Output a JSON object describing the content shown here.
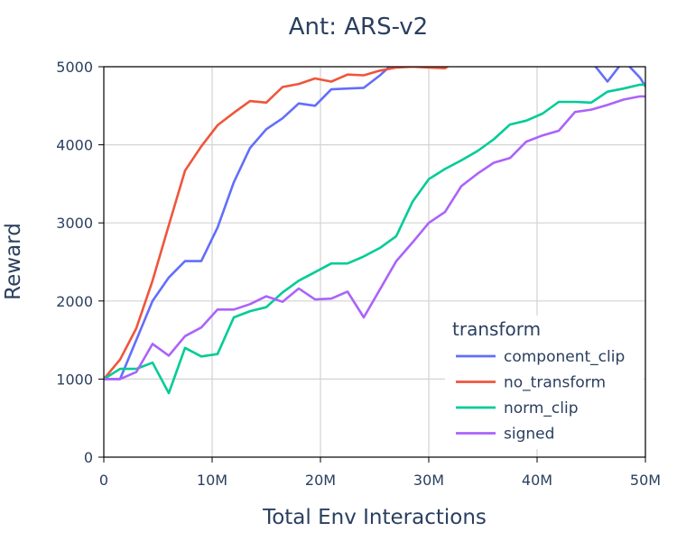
{
  "chart_data": {
    "type": "line",
    "title": "Ant: ARS-v2",
    "xlabel": "Total Env Interactions",
    "ylabel": "Reward",
    "xlim": [
      0,
      50000000
    ],
    "ylim": [
      0,
      5000
    ],
    "x_ticks": [
      0,
      10000000,
      20000000,
      30000000,
      40000000,
      50000000
    ],
    "x_tick_labels": [
      "0",
      "10M",
      "20M",
      "30M",
      "40M",
      "50M"
    ],
    "y_ticks": [
      0,
      1000,
      2000,
      3000,
      4000,
      5000
    ],
    "y_tick_labels": [
      "0",
      "1000",
      "2000",
      "3000",
      "4000",
      "5000"
    ],
    "grid": true,
    "legend": {
      "title": "transform",
      "placement": "bottom-right"
    },
    "series": [
      {
        "name": "component_clip",
        "color": "#636efa",
        "x": [
          0,
          1500000,
          3000000,
          4500000,
          6000000,
          7500000,
          9000000,
          10500000,
          12000000,
          13500000,
          15000000,
          16500000,
          18000000,
          19500000,
          21000000,
          22500000,
          24000000,
          25500000,
          27000000,
          28500000,
          30000000,
          31500000,
          33000000,
          34500000,
          36000000,
          37500000,
          39000000,
          40500000,
          42000000,
          43500000,
          45000000,
          46500000,
          48000000,
          49500000,
          50000000
        ],
        "y": [
          1000,
          1000,
          1500,
          2000,
          2300,
          2510,
          2510,
          2940,
          3520,
          3960,
          4200,
          4340,
          4530,
          4500,
          4710,
          4720,
          4730,
          4890,
          5080,
          5100,
          5130,
          5150,
          5120,
          5140,
          5110,
          5100,
          5020,
          5100,
          5150,
          5120,
          5070,
          4810,
          5080,
          4860,
          4750
        ]
      },
      {
        "name": "no_transform",
        "color": "#ef553b",
        "x": [
          0,
          1500000,
          3000000,
          4500000,
          6000000,
          7500000,
          9000000,
          10500000,
          12000000,
          13500000,
          15000000,
          16500000,
          18000000,
          19500000,
          21000000,
          22500000,
          24000000,
          25500000,
          27000000,
          28500000,
          30000000,
          31500000,
          33000000,
          34500000
        ],
        "y": [
          1000,
          1250,
          1650,
          2260,
          2970,
          3670,
          3980,
          4250,
          4410,
          4560,
          4540,
          4740,
          4780,
          4850,
          4810,
          4900,
          4890,
          4950,
          4990,
          5000,
          4990,
          4980,
          5120,
          5200
        ]
      },
      {
        "name": "norm_clip",
        "color": "#00cc96",
        "x": [
          0,
          1500000,
          3000000,
          4500000,
          6000000,
          7500000,
          9000000,
          10500000,
          12000000,
          13500000,
          15000000,
          16500000,
          18000000,
          19500000,
          21000000,
          22500000,
          24000000,
          25500000,
          27000000,
          28500000,
          30000000,
          31500000,
          33000000,
          34500000,
          36000000,
          37500000,
          39000000,
          40500000,
          42000000,
          43500000,
          45000000,
          46500000,
          48000000,
          49500000,
          50000000
        ],
        "y": [
          1000,
          1130,
          1130,
          1210,
          820,
          1400,
          1290,
          1320,
          1790,
          1870,
          1920,
          2110,
          2260,
          2370,
          2480,
          2480,
          2570,
          2680,
          2830,
          3270,
          3560,
          3690,
          3800,
          3920,
          4070,
          4260,
          4310,
          4400,
          4550,
          4550,
          4540,
          4680,
          4720,
          4770,
          4770
        ]
      },
      {
        "name": "signed",
        "color": "#ab63fa",
        "x": [
          0,
          1500000,
          3000000,
          4500000,
          6000000,
          7500000,
          9000000,
          10500000,
          12000000,
          13500000,
          15000000,
          16500000,
          18000000,
          19500000,
          21000000,
          22500000,
          24000000,
          25500000,
          27000000,
          28500000,
          30000000,
          31500000,
          33000000,
          34500000,
          36000000,
          37500000,
          39000000,
          40500000,
          42000000,
          43500000,
          45000000,
          46500000,
          48000000,
          49500000,
          50000000
        ],
        "y": [
          1000,
          1000,
          1090,
          1450,
          1300,
          1550,
          1660,
          1890,
          1890,
          1960,
          2060,
          1990,
          2160,
          2020,
          2030,
          2120,
          1790,
          2150,
          2510,
          2750,
          3000,
          3140,
          3470,
          3630,
          3770,
          3830,
          4040,
          4120,
          4180,
          4420,
          4450,
          4510,
          4580,
          4620,
          4620
        ]
      }
    ]
  }
}
